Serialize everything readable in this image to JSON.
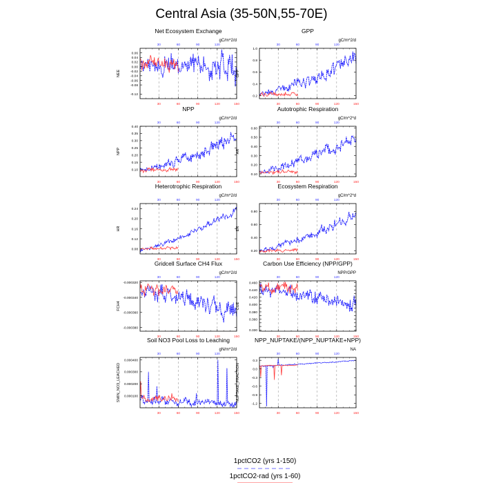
{
  "figure": {
    "title": "Central Asia (35-50N,55-70E)",
    "legend": [
      {
        "label": "1pctCO2 (yrs 1-150)",
        "color": "#8c8cff",
        "style": "dashed"
      },
      {
        "label": "1pctCO2-rad (yrs 1-60)",
        "color": "#ff6b6b",
        "style": "solid"
      }
    ]
  },
  "chart_data": [
    {
      "type": "line",
      "title": "Net Ecosystem Exchange",
      "units": "gC/m^2/d",
      "ylabel": "NEE",
      "xlim": [
        1,
        150
      ],
      "ylim": [
        -0.14,
        0.08
      ],
      "yticks": [
        0.06,
        0.04,
        0.02,
        0.0,
        -0.02,
        -0.04,
        -0.06,
        -0.08,
        -0.12
      ],
      "ytick_labels": [
        "0.06",
        "0.04",
        "0.02",
        "0.00",
        "-0.02",
        "-0.04",
        "-0.06",
        "-0.08",
        "-0.12"
      ],
      "xticks_top": [
        30,
        60,
        90,
        120
      ],
      "xticks_bottom": [
        30,
        60,
        90,
        120,
        150
      ],
      "series": [
        {
          "start": 0.01,
          "end": 0.0,
          "amp": 0.028,
          "amp_growth": 2.0,
          "seed": 3,
          "years": 150
        },
        {
          "start": 0.01,
          "end": 0.005,
          "amp": 0.025,
          "amp_growth": 1.0,
          "seed": 11,
          "years": 60
        }
      ]
    },
    {
      "type": "line",
      "title": "GPP",
      "units": "gC/m^2/d",
      "ylabel": "GPP",
      "xlim": [
        1,
        150
      ],
      "ylim": [
        0.15,
        1.0
      ],
      "yticks": [
        0.2,
        0.4,
        0.6,
        0.8,
        1.0
      ],
      "ytick_labels": [
        "0.2",
        "0.4",
        "0.6",
        "0.8",
        "1.0"
      ],
      "xticks_top": [
        30,
        60,
        90,
        120
      ],
      "xticks_bottom": [
        30,
        60,
        90,
        120,
        150
      ],
      "series": [
        {
          "start": 0.22,
          "end": 0.82,
          "amp": 0.04,
          "amp_growth": 3.0,
          "seed": 5,
          "years": 150
        },
        {
          "start": 0.22,
          "end": 0.27,
          "amp": 0.03,
          "amp_growth": 1.0,
          "seed": 17,
          "years": 60
        }
      ]
    },
    {
      "type": "line",
      "title": "NPP",
      "units": "gC/m^2/d",
      "ylabel": "NPP",
      "xlim": [
        1,
        150
      ],
      "ylim": [
        0.05,
        0.4
      ],
      "yticks": [
        0.1,
        0.15,
        0.2,
        0.25,
        0.3,
        0.35,
        0.4
      ],
      "ytick_labels": [
        "0.10",
        "0.15",
        "0.20",
        "0.25",
        "0.30",
        "0.35",
        "0.40"
      ],
      "xticks_top": [
        30,
        60,
        90,
        120
      ],
      "xticks_bottom": [
        30,
        60,
        90,
        120,
        150
      ],
      "series": [
        {
          "start": 0.095,
          "end": 0.31,
          "amp": 0.015,
          "amp_growth": 3.0,
          "seed": 7,
          "years": 150
        },
        {
          "start": 0.095,
          "end": 0.11,
          "amp": 0.012,
          "amp_growth": 1.0,
          "seed": 19,
          "years": 60
        }
      ]
    },
    {
      "type": "line",
      "title": "Autotrophic Respiration",
      "units": "gC/m^2*d",
      "ylabel": "AR",
      "xlim": [
        1,
        150
      ],
      "ylim": [
        0.07,
        0.62
      ],
      "yticks": [
        0.1,
        0.2,
        0.3,
        0.4,
        0.5,
        0.6
      ],
      "ytick_labels": [
        "0.10",
        "0.20",
        "0.30",
        "0.40",
        "0.50",
        "0.60"
      ],
      "xticks_top": [
        30,
        60,
        90,
        120
      ],
      "xticks_bottom": [
        30,
        60,
        90,
        120,
        150
      ],
      "series": [
        {
          "start": 0.12,
          "end": 0.5,
          "amp": 0.022,
          "amp_growth": 3.0,
          "seed": 9,
          "years": 150
        },
        {
          "start": 0.12,
          "end": 0.15,
          "amp": 0.018,
          "amp_growth": 1.0,
          "seed": 23,
          "years": 60
        }
      ]
    },
    {
      "type": "line",
      "title": "Heterotrophic Respiration",
      "units": "gC/m^2/d",
      "ylabel": "HR",
      "xlim": [
        1,
        150
      ],
      "ylim": [
        0.06,
        0.26
      ],
      "yticks": [
        0.08,
        0.12,
        0.16,
        0.2,
        0.24
      ],
      "ytick_labels": [
        "0.08",
        "0.12",
        "0.16",
        "0.20",
        "0.24"
      ],
      "xticks_top": [
        30,
        60,
        90,
        120
      ],
      "xticks_bottom": [
        30,
        60,
        90,
        120,
        150
      ],
      "series": [
        {
          "start": 0.075,
          "end": 0.235,
          "amp": 0.005,
          "amp_growth": 2.5,
          "seed": 13,
          "years": 150
        },
        {
          "start": 0.078,
          "end": 0.1,
          "amp": 0.005,
          "amp_growth": 1.0,
          "seed": 29,
          "years": 60
        }
      ]
    },
    {
      "type": "line",
      "title": "Ecosystem Respiration",
      "units": "gC/m^2*d",
      "ylabel": "ER",
      "xlim": [
        1,
        150
      ],
      "ylim": [
        0.15,
        0.92
      ],
      "yticks": [
        0.2,
        0.4,
        0.6,
        0.8
      ],
      "ytick_labels": [
        "0.20",
        "0.40",
        "0.60",
        "0.80"
      ],
      "xticks_top": [
        30,
        60,
        90,
        120
      ],
      "xticks_bottom": [
        30,
        60,
        90,
        120,
        150
      ],
      "series": [
        {
          "start": 0.2,
          "end": 0.74,
          "amp": 0.025,
          "amp_growth": 3.0,
          "seed": 15,
          "years": 150
        },
        {
          "start": 0.2,
          "end": 0.24,
          "amp": 0.02,
          "amp_growth": 1.0,
          "seed": 31,
          "years": 60
        }
      ]
    },
    {
      "type": "line",
      "title": "Gridcell Surface CH4 Flux",
      "units": "gC/m^2/d",
      "ylabel": "FCH4",
      "xlim": [
        1,
        150
      ],
      "ylim": [
        -0.000385,
        -0.000318
      ],
      "yticks": [
        -0.00032,
        -0.00034,
        -0.00036,
        -0.00038
      ],
      "ytick_labels": [
        "-0.000320",
        "-0.000340",
        "-0.000360",
        "-0.000380"
      ],
      "xticks_top": [
        30,
        60,
        90,
        120
      ],
      "xticks_bottom": [
        30,
        60,
        90,
        120,
        150
      ],
      "series": [
        {
          "start": -0.000329,
          "end": -0.000362,
          "amp": 8.5e-06,
          "amp_growth": 1.2,
          "seed": 21,
          "years": 150
        },
        {
          "start": -0.000329,
          "end": -0.000342,
          "amp": 7.5e-06,
          "amp_growth": 1.0,
          "seed": 37,
          "years": 60
        }
      ]
    },
    {
      "type": "line",
      "title": "Carbon Use Efficiency (NPP/GPP)",
      "units": "NPP/GPP",
      "ylabel": "CUE",
      "xlim": [
        1,
        150
      ],
      "ylim": [
        0.327,
        0.465
      ],
      "yticks": [
        0.46,
        0.45,
        0.44,
        0.43,
        0.42,
        0.41,
        0.4,
        0.39,
        0.38,
        0.37,
        0.36,
        0.35,
        0.34,
        0.33
      ],
      "ytick_labels": [
        "0.460",
        "",
        "0.440",
        "",
        "0.420",
        "",
        "0.400",
        "",
        "0.380",
        "",
        "0.360",
        "",
        "",
        "0.330"
      ],
      "xticks_top": [
        30,
        60,
        90,
        120
      ],
      "xticks_bottom": [
        30,
        60,
        90,
        120,
        150
      ],
      "series": [
        {
          "start": 0.44,
          "end": 0.4,
          "amp": 0.014,
          "amp_growth": 1.3,
          "seed": 25,
          "years": 150
        },
        {
          "start": 0.445,
          "end": 0.44,
          "amp": 0.012,
          "amp_growth": 1.0,
          "seed": 41,
          "years": 60
        }
      ]
    },
    {
      "type": "line",
      "title": "Soil NO3 Pool Loss to Leaching",
      "units": "gN/m^2/d",
      "ylabel": "SMIN_NO3_LEACHED",
      "xlim": [
        1,
        150
      ],
      "ylim": [
        0.0,
        0.00042
      ],
      "yticks": [
        0.0001,
        0.0002,
        0.0003,
        0.0004
      ],
      "ytick_labels": [
        "0.000100",
        "0.000200",
        "0.000300",
        "0.000400"
      ],
      "xticks_top": [
        30,
        60,
        90,
        120
      ],
      "xticks_bottom": [
        30,
        60,
        90,
        120,
        150
      ],
      "series": [
        {
          "start": 6e-05,
          "end": 4e-05,
          "amp": 2.5e-05,
          "amp_growth": 1.0,
          "seed": 27,
          "years": 150,
          "spikes": [
            [
              3,
              0.00011
            ],
            [
              14,
              0.0003
            ],
            [
              27,
              0.00018
            ],
            [
              88,
              0.00012
            ],
            [
              121,
              0.0004
            ],
            [
              135,
              0.00033
            ]
          ]
        },
        {
          "start": 8e-05,
          "end": 6e-05,
          "amp": 2e-05,
          "amp_growth": 1.0,
          "seed": 43,
          "years": 60,
          "spikes": [
            [
              2,
              0.00022
            ],
            [
              50,
              0.00012
            ]
          ]
        }
      ]
    },
    {
      "type": "line",
      "title": "NPP_NUPTAKE/(NPP_NUPTAKE+NPP)",
      "units": "NA",
      "ylabel": "NUPTAKE_FRACTION",
      "xlim": [
        1,
        150
      ],
      "ylim": [
        -1.35,
        0.4
      ],
      "yticks": [
        0.3,
        0.0,
        -0.3,
        -0.6,
        -0.9,
        -1.2
      ],
      "ytick_labels": [
        "0.3",
        "0.0",
        "-0.3",
        "-0.6",
        "-0.9",
        "-1.2"
      ],
      "xticks_top": [
        30,
        60,
        90,
        120
      ],
      "xticks_bottom": [
        30,
        60,
        90,
        120,
        150
      ],
      "series": [
        {
          "start": 0.1,
          "end": 0.3,
          "amp": 0.015,
          "amp_growth": 1.0,
          "seed": 33,
          "years": 150,
          "spikes": [
            [
              12,
              -1.3
            ],
            [
              22,
              0.05
            ],
            [
              30,
              0.34
            ]
          ]
        },
        {
          "start": 0.12,
          "end": 0.14,
          "amp": 0.012,
          "amp_growth": 1.0,
          "seed": 47,
          "years": 60,
          "spikes": [
            [
              3,
              -0.28
            ],
            [
              24,
              -0.38
            ],
            [
              35,
              -0.22
            ]
          ]
        }
      ]
    }
  ]
}
